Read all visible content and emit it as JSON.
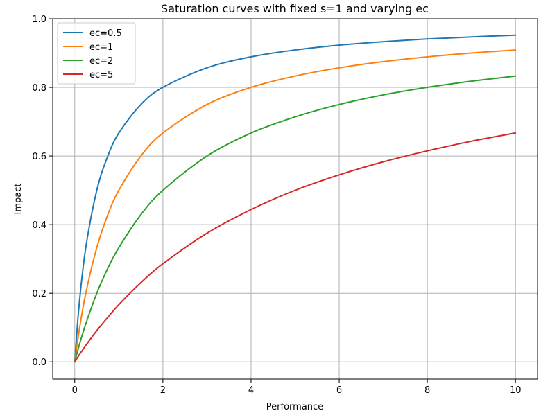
{
  "chart_data": {
    "type": "line",
    "title": "Saturation curves with fixed s=1 and varying ec",
    "xlabel": "Performance",
    "ylabel": "Impact",
    "xlim": [
      -0.5,
      10.5
    ],
    "ylim": [
      -0.05,
      1.0
    ],
    "xticks": [
      0,
      2,
      4,
      6,
      8,
      10
    ],
    "yticks": [
      0.0,
      0.2,
      0.4,
      0.6,
      0.8,
      1.0
    ],
    "xtick_labels": [
      "0",
      "2",
      "4",
      "6",
      "8",
      "10"
    ],
    "ytick_labels": [
      "0.0",
      "0.2",
      "0.4",
      "0.6",
      "0.8",
      "1.0"
    ],
    "grid": true,
    "legend_position": "top-left",
    "x": [
      0,
      0.1,
      0.25,
      0.5,
      0.75,
      1,
      1.5,
      2,
      3,
      4,
      5,
      6,
      7,
      8,
      9,
      10
    ],
    "series": [
      {
        "name": "ec=0.5",
        "color": "#1f77b4",
        "values": [
          0,
          0.167,
          0.333,
          0.5,
          0.6,
          0.667,
          0.75,
          0.8,
          0.857,
          0.889,
          0.909,
          0.923,
          0.933,
          0.941,
          0.947,
          0.952
        ]
      },
      {
        "name": "ec=1",
        "color": "#ff7f0e",
        "values": [
          0,
          0.091,
          0.2,
          0.333,
          0.429,
          0.5,
          0.6,
          0.667,
          0.75,
          0.8,
          0.833,
          0.857,
          0.875,
          0.889,
          0.9,
          0.909
        ]
      },
      {
        "name": "ec=2",
        "color": "#2ca02c",
        "values": [
          0,
          0.048,
          0.111,
          0.2,
          0.273,
          0.333,
          0.429,
          0.5,
          0.6,
          0.667,
          0.714,
          0.75,
          0.778,
          0.8,
          0.818,
          0.833
        ]
      },
      {
        "name": "ec=5",
        "color": "#d62728",
        "values": [
          0,
          0.02,
          0.048,
          0.091,
          0.13,
          0.167,
          0.231,
          0.286,
          0.375,
          0.444,
          0.5,
          0.545,
          0.583,
          0.615,
          0.643,
          0.667
        ]
      }
    ]
  }
}
